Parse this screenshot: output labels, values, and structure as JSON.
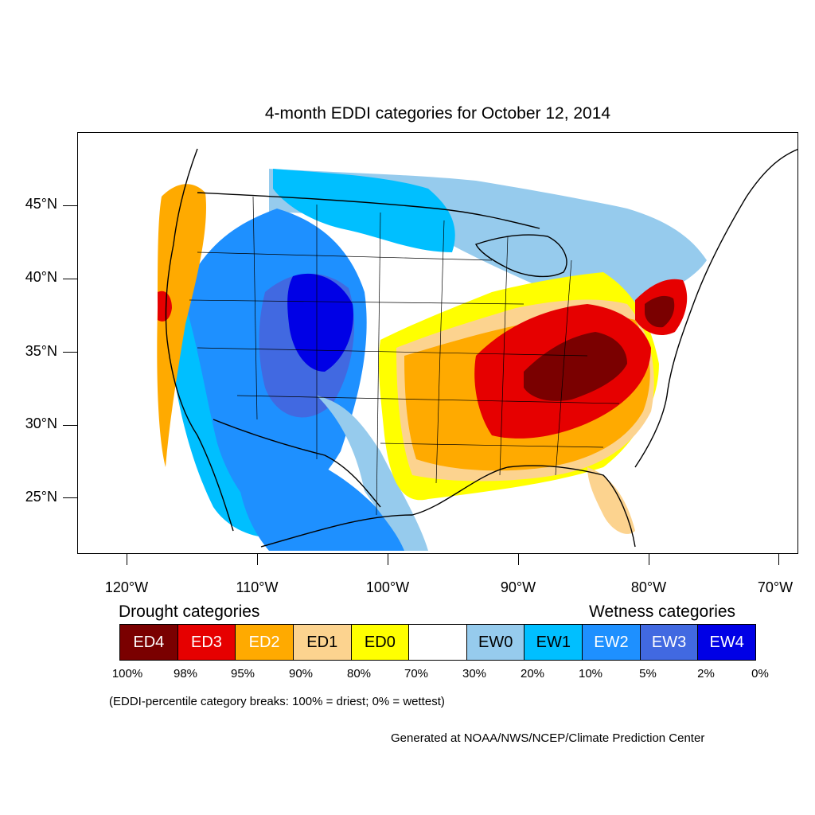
{
  "title": "4-month EDDI categories for October 12, 2014",
  "latitude_labels": [
    "45°N",
    "40°N",
    "35°N",
    "30°N",
    "25°N"
  ],
  "longitude_labels": [
    "120°W",
    "110°W",
    "100°W",
    "90°W",
    "80°W",
    "70°W"
  ],
  "legend": {
    "drought_heading": "Drought categories",
    "wetness_heading": "Wetness categories",
    "categories": [
      {
        "label": "ED4",
        "color": "#7a0000",
        "text_color": "#ffffff"
      },
      {
        "label": "ED3",
        "color": "#e60000",
        "text_color": "#ffffff"
      },
      {
        "label": "ED2",
        "color": "#ffaa00",
        "text_color": "#ffffff"
      },
      {
        "label": "ED1",
        "color": "#fcd38f",
        "text_color": "#000000"
      },
      {
        "label": "ED0",
        "color": "#ffff00",
        "text_color": "#000000"
      },
      {
        "label": "",
        "color": "#ffffff",
        "text_color": "#000000"
      },
      {
        "label": "EW0",
        "color": "#96cbed",
        "text_color": "#000000"
      },
      {
        "label": "EW1",
        "color": "#00bfff",
        "text_color": "#000000"
      },
      {
        "label": "EW2",
        "color": "#1e90ff",
        "text_color": "#ffffff"
      },
      {
        "label": "EW3",
        "color": "#4169e1",
        "text_color": "#ffffff"
      },
      {
        "label": "EW4",
        "color": "#0000e6",
        "text_color": "#ffffff"
      }
    ],
    "breaks": [
      "100%",
      "98%",
      "95%",
      "90%",
      "80%",
      "70%",
      "30%",
      "20%",
      "10%",
      "5%",
      "2%",
      "0%"
    ],
    "note": "(EDDI-percentile category breaks: 100% = driest; 0% = wettest)"
  },
  "credit": "Generated at NOAA/NWS/NCEP/Climate Prediction Center"
}
